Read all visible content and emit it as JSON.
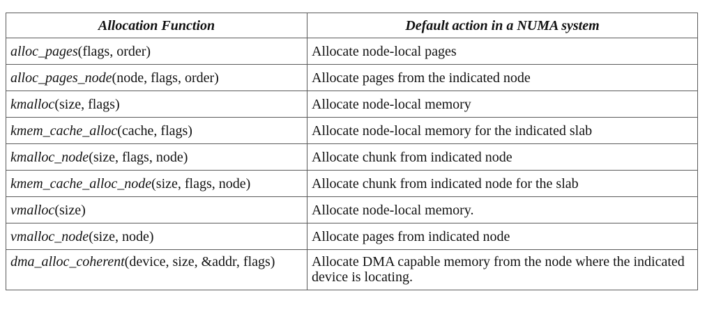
{
  "table": {
    "headers": [
      "Allocation Function",
      "Default action in a NUMA system"
    ],
    "rows": [
      {
        "fn": "alloc_pages",
        "args": "(flags, order)",
        "action": "Allocate node-local pages"
      },
      {
        "fn": "alloc_pages_node",
        "args": "(node, flags, order)",
        "action": "Allocate pages from the indicated node"
      },
      {
        "fn": "kmalloc",
        "args": "(size, flags)",
        "action": "Allocate node-local memory"
      },
      {
        "fn": "kmem_cache_alloc",
        "args": "(cache, flags)",
        "action": "Allocate node-local memory for the indicated slab"
      },
      {
        "fn": "kmalloc_node",
        "args": "(size, flags, node)",
        "action": "Allocate chunk from indicated node"
      },
      {
        "fn": "kmem_cache_alloc_node",
        "args": "(size, flags, node)",
        "action": "Allocate chunk from indicated node for the slab"
      },
      {
        "fn": "vmalloc",
        "args": "(size)",
        "action": "Allocate node-local memory."
      },
      {
        "fn": "vmalloc_node",
        "args": "(size, node)",
        "action": "Allocate pages from indicated node"
      },
      {
        "fn": "dma_alloc_coherent",
        "args": "(device, size, &addr, flags)",
        "action": "Allocate DMA capable memory from the node where the indicated device is locating."
      }
    ]
  }
}
